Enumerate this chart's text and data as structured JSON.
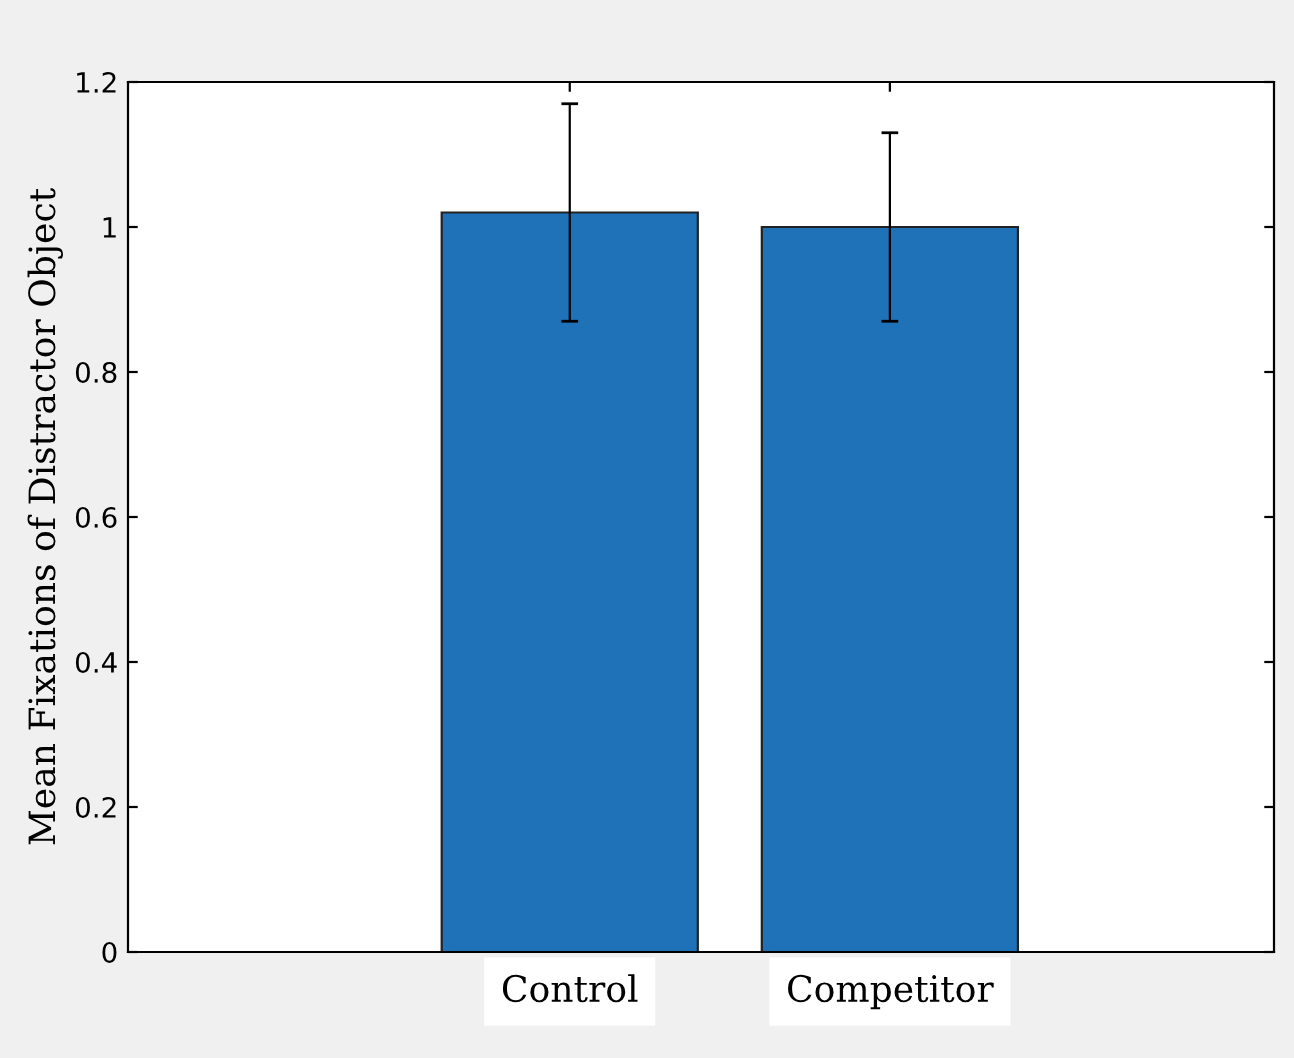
{
  "chart_data": {
    "type": "bar",
    "ylabel": "Mean Fixations of Distractor Object",
    "categories": [
      "Control",
      "Competitor"
    ],
    "values": [
      1.02,
      1.0
    ],
    "errors": [
      [
        0.87,
        1.17
      ],
      [
        0.87,
        1.13
      ]
    ],
    "color": "#2072b8",
    "ylim": [
      0,
      1.2
    ],
    "yticks": [
      0,
      0.2,
      0.4,
      0.6,
      0.8,
      1,
      1.2
    ],
    "grid": false
  }
}
